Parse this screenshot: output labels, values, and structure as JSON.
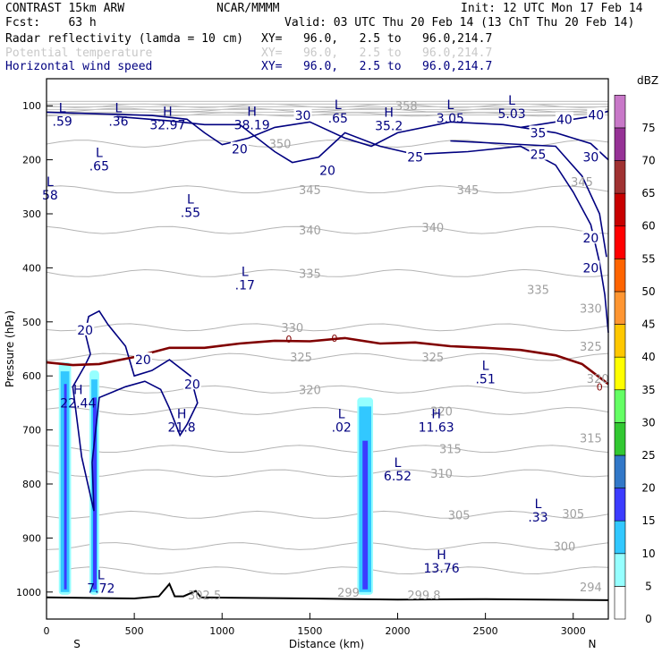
{
  "header": {
    "model": "CONTRAST 15km ARW",
    "org": "NCAR/MMMM",
    "init": "Init: 12 UTC Mon 17 Feb 14",
    "fcst": "Fcst:    63 h",
    "valid": "Valid: 03 UTC Thu 20 Feb 14 (13 ChT Thu 20 Feb 14)",
    "fields": [
      {
        "name": "Radar reflectivity (lamda = 10 cm)",
        "xy": "XY=   96.0,   2.5 to   96.0,214.7",
        "color": "#000000"
      },
      {
        "name": "Potential temperature",
        "xy": "XY=   96.0,   2.5 to   96.0,214.7",
        "color": "#c8c8c8"
      },
      {
        "name": "Horizontal wind speed",
        "xy": "XY=   96.0,   2.5 to   96.0,214.7",
        "color": "#000080"
      }
    ]
  },
  "chart_data": {
    "type": "cross-section",
    "xlabel": "Distance (km)",
    "ylabel": "Pressure (hPa)",
    "xlim": [
      0,
      3200
    ],
    "ylim": [
      1050,
      50
    ],
    "x_ticks": [
      0,
      500,
      1000,
      1500,
      2000,
      2500,
      3000
    ],
    "y_ticks": [
      100,
      200,
      300,
      400,
      500,
      600,
      700,
      800,
      900,
      1000
    ],
    "x_end_labels": {
      "left": "S",
      "right": "N"
    },
    "colorbar": {
      "units": "dBZ",
      "levels": [
        0,
        5,
        10,
        15,
        20,
        25,
        30,
        35,
        40,
        45,
        50,
        55,
        60,
        65,
        70,
        75
      ],
      "colors": [
        "#ffffff",
        "#96ffff",
        "#32c8ff",
        "#3c3cff",
        "#3278c8",
        "#32c832",
        "#64ff64",
        "#ffff00",
        "#ffc800",
        "#ff9632",
        "#ff6400",
        "#ff0000",
        "#c80000",
        "#a03232",
        "#963296",
        "#c878c8"
      ]
    },
    "theta_labels": [
      {
        "v": "350",
        "x": 1330,
        "p": 170
      },
      {
        "v": "345",
        "x": 1500,
        "p": 255
      },
      {
        "v": "345",
        "x": 2400,
        "p": 255
      },
      {
        "v": "345",
        "x": 3050,
        "p": 240
      },
      {
        "v": "340",
        "x": 1500,
        "p": 330
      },
      {
        "v": "340",
        "x": 2200,
        "p": 325
      },
      {
        "v": "335",
        "x": 1500,
        "p": 410
      },
      {
        "v": "335",
        "x": 2800,
        "p": 440
      },
      {
        "v": "330",
        "x": 1400,
        "p": 510
      },
      {
        "v": "330",
        "x": 3100,
        "p": 475
      },
      {
        "v": "325",
        "x": 1450,
        "p": 565
      },
      {
        "v": "325",
        "x": 2200,
        "p": 565
      },
      {
        "v": "325",
        "x": 3100,
        "p": 545
      },
      {
        "v": "320",
        "x": 1500,
        "p": 625
      },
      {
        "v": "320",
        "x": 2250,
        "p": 665
      },
      {
        "v": "320",
        "x": 3140,
        "p": 605
      },
      {
        "v": "315",
        "x": 2300,
        "p": 735
      },
      {
        "v": "315",
        "x": 3100,
        "p": 715
      },
      {
        "v": "310",
        "x": 2250,
        "p": 780
      },
      {
        "v": "305",
        "x": 2350,
        "p": 857
      },
      {
        "v": "305",
        "x": 3000,
        "p": 855
      },
      {
        "v": "300",
        "x": 2950,
        "p": 915
      },
      {
        "v": "294",
        "x": 3100,
        "p": 990
      },
      {
        "v": "299",
        "x": 1720,
        "p": 1000
      },
      {
        "v": "299.8",
        "x": 2150,
        "p": 1005
      },
      {
        "v": "302.5",
        "x": 900,
        "p": 1005
      },
      {
        "v": "358",
        "x": 2050,
        "p": 100
      }
    ],
    "wind_labels": [
      {
        "v": "30",
        "x": 1460,
        "p": 118
      },
      {
        "v": "20",
        "x": 1100,
        "p": 180
      },
      {
        "v": "20",
        "x": 1600,
        "p": 220
      },
      {
        "v": "25",
        "x": 2100,
        "p": 195
      },
      {
        "v": "25",
        "x": 2800,
        "p": 190
      },
      {
        "v": "30",
        "x": 3100,
        "p": 195
      },
      {
        "v": "40",
        "x": 2950,
        "p": 125
      },
      {
        "v": "40",
        "x": 3130,
        "p": 117
      },
      {
        "v": "35",
        "x": 2800,
        "p": 150
      },
      {
        "v": "20",
        "x": 3100,
        "p": 345
      },
      {
        "v": "20",
        "x": 3100,
        "p": 400
      },
      {
        "v": "20",
        "x": 220,
        "p": 515
      },
      {
        "v": "20",
        "x": 550,
        "p": 570
      },
      {
        "v": "20",
        "x": 830,
        "p": 615
      }
    ],
    "hl_marks": [
      {
        "letter": "L",
        "v": ".59",
        "x": 90,
        "p": 115
      },
      {
        "letter": "L",
        "v": ".36",
        "x": 410,
        "p": 115
      },
      {
        "letter": "H",
        "v": "32.97",
        "x": 690,
        "p": 122
      },
      {
        "letter": "H",
        "v": "38.19",
        "x": 1170,
        "p": 122
      },
      {
        "letter": "L",
        "v": ".65",
        "x": 1660,
        "p": 110
      },
      {
        "letter": "H",
        "v": "35.2",
        "x": 1950,
        "p": 124
      },
      {
        "letter": "L",
        "v": "3.05",
        "x": 2300,
        "p": 110
      },
      {
        "letter": "L",
        "v": "5.03",
        "x": 2650,
        "p": 101
      },
      {
        "letter": "L",
        "v": ".65",
        "x": 300,
        "p": 198
      },
      {
        "letter": "L",
        "v": ".55",
        "x": 820,
        "p": 284
      },
      {
        "letter": "L",
        "v": ".17",
        "x": 1130,
        "p": 418
      },
      {
        "letter": "H",
        "v": "22.44",
        "x": 180,
        "p": 637
      },
      {
        "letter": "H",
        "v": "21.8",
        "x": 770,
        "p": 682
      },
      {
        "letter": "L",
        "v": ".02",
        "x": 1680,
        "p": 682
      },
      {
        "letter": "H",
        "v": "11.63",
        "x": 2220,
        "p": 682
      },
      {
        "letter": "L",
        "v": "6.52",
        "x": 2000,
        "p": 772
      },
      {
        "letter": "L",
        "v": ".51",
        "x": 2500,
        "p": 592
      },
      {
        "letter": "L",
        "v": ".33",
        "x": 2800,
        "p": 848
      },
      {
        "letter": "H",
        "v": "13.76",
        "x": 2250,
        "p": 942
      },
      {
        "letter": "L",
        "v": "7.72",
        "x": 310,
        "p": 980
      },
      {
        "letter": "L",
        "v": "58",
        "x": 20,
        "p": 252
      }
    ],
    "freezing_labels": [
      {
        "v": "0",
        "x": 1380,
        "p": 532
      },
      {
        "v": "0",
        "x": 1640,
        "p": 530
      },
      {
        "v": "0",
        "x": 3150,
        "p": 620
      }
    ],
    "freezing_line": [
      [
        0,
        575
      ],
      [
        150,
        580
      ],
      [
        300,
        578
      ],
      [
        500,
        565
      ],
      [
        700,
        548
      ],
      [
        900,
        548
      ],
      [
        1100,
        540
      ],
      [
        1300,
        535
      ],
      [
        1500,
        536
      ],
      [
        1700,
        530
      ],
      [
        1900,
        540
      ],
      [
        2100,
        538
      ],
      [
        2300,
        545
      ],
      [
        2500,
        548
      ],
      [
        2700,
        552
      ],
      [
        2900,
        562
      ],
      [
        3050,
        578
      ],
      [
        3200,
        615
      ]
    ],
    "terrain": [
      [
        0,
        1010
      ],
      [
        500,
        1012
      ],
      [
        640,
        1008
      ],
      [
        700,
        985
      ],
      [
        730,
        1008
      ],
      [
        780,
        1008
      ],
      [
        850,
        998
      ],
      [
        880,
        1010
      ],
      [
        1500,
        1012
      ],
      [
        2000,
        1014
      ],
      [
        2500,
        1013
      ],
      [
        3200,
        1015
      ]
    ],
    "reflectivity_columns": [
      {
        "x0": 70,
        "x1": 140,
        "p_top": 575,
        "core": [
          100,
          115
        ],
        "core_top": 615
      },
      {
        "x0": 245,
        "x1": 300,
        "p_top": 590,
        "core": [
          265,
          285
        ],
        "core_top": 640
      },
      {
        "x0": 1770,
        "x1": 1860,
        "p_top": 640,
        "core": [
          1800,
          1830
        ],
        "core_top": 720
      }
    ]
  }
}
